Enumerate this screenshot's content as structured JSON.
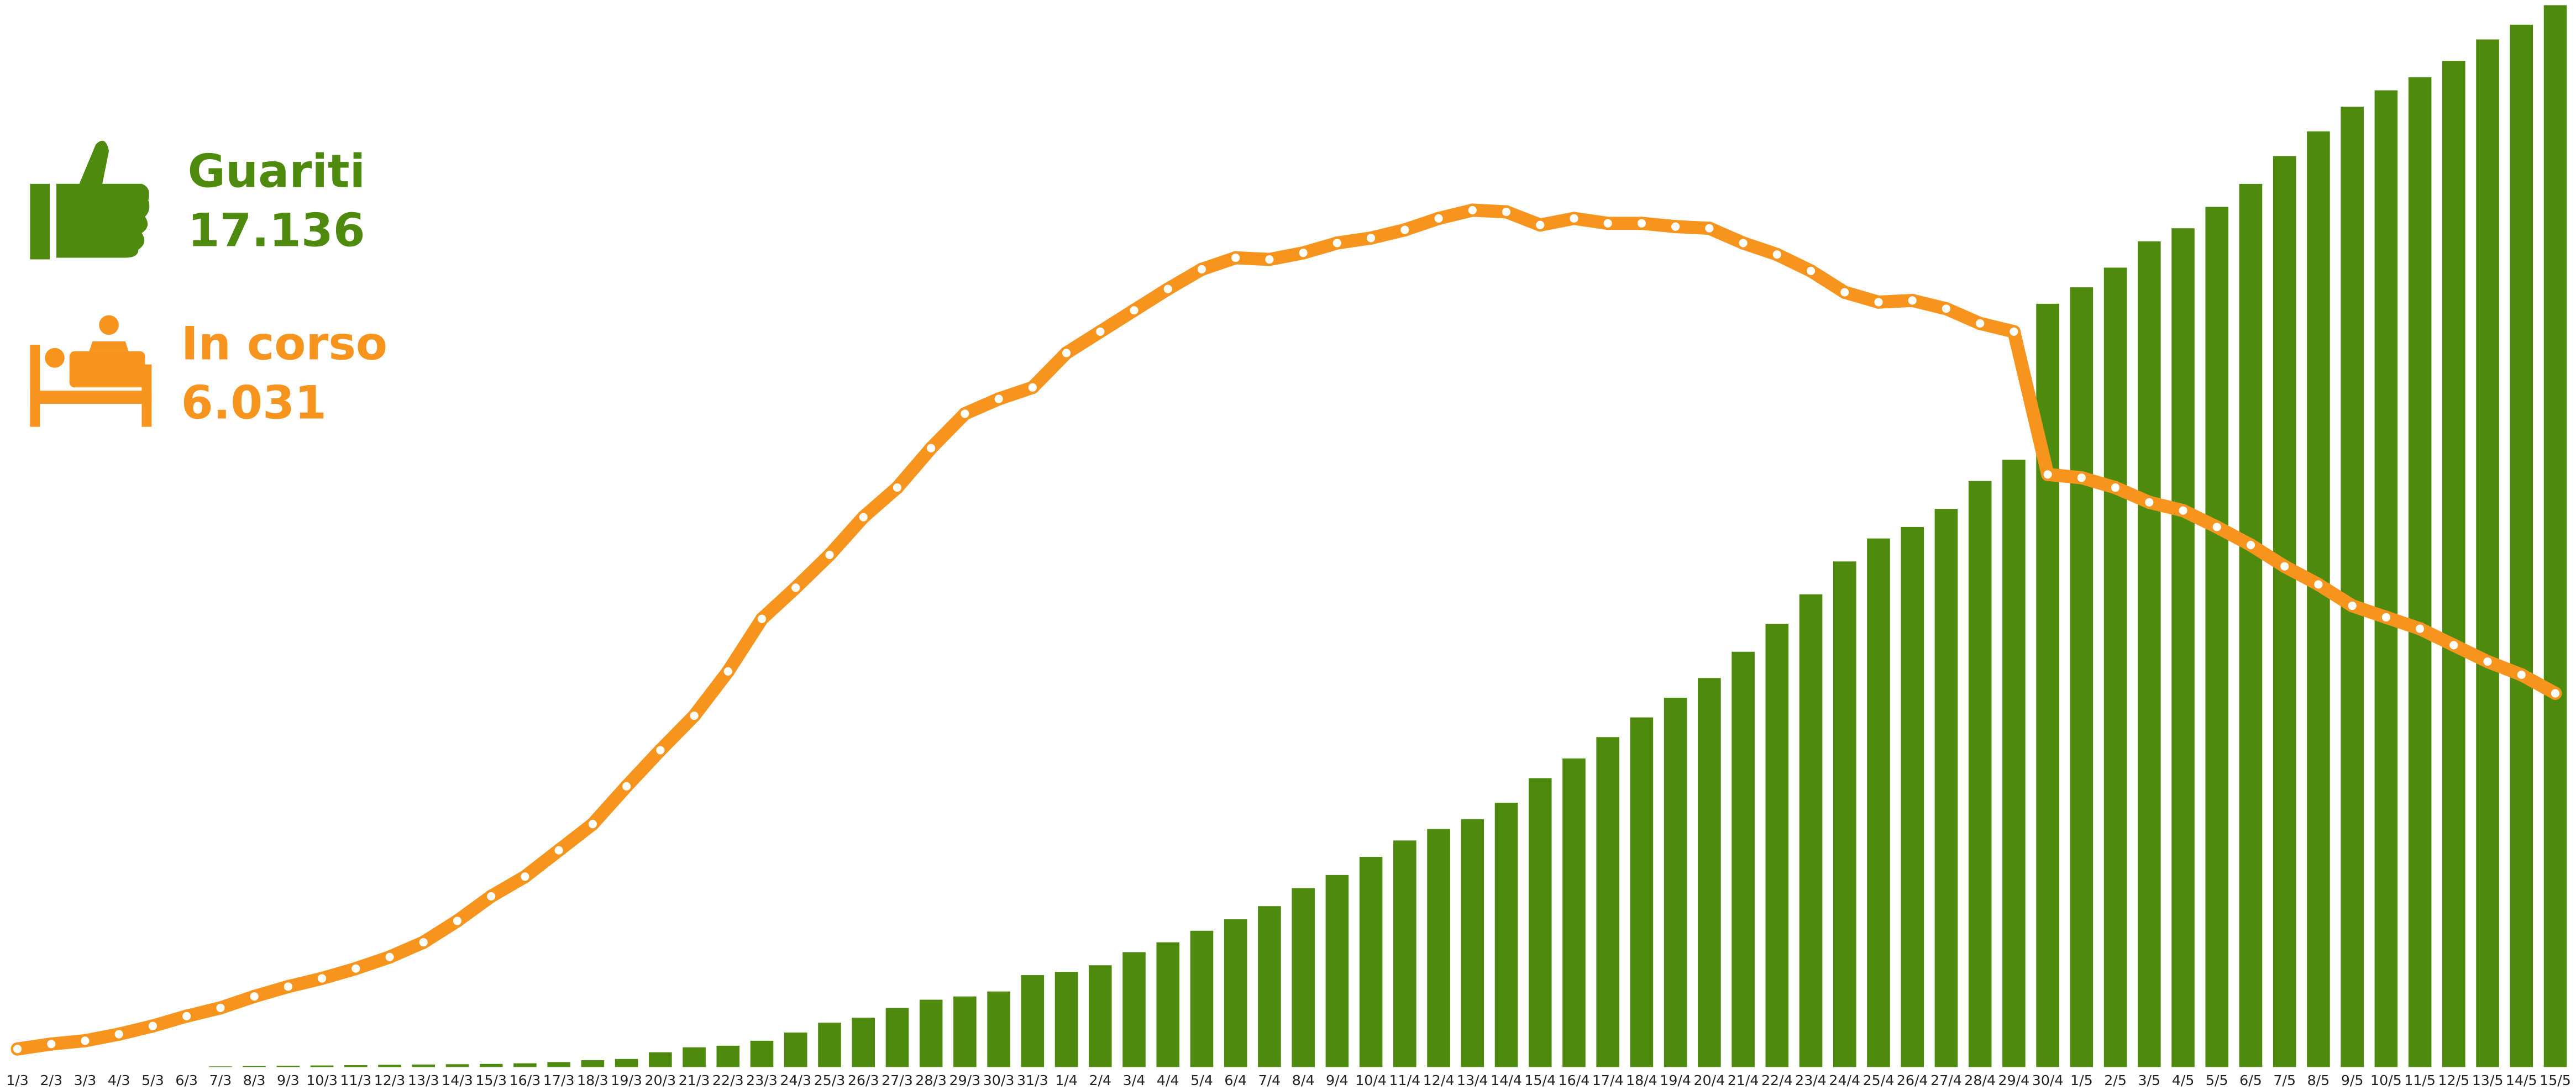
{
  "chart_data": {
    "type": "bar-line",
    "categories": [
      "1/3",
      "2/3",
      "3/3",
      "4/3",
      "5/3",
      "6/3",
      "7/3",
      "8/3",
      "9/3",
      "10/3",
      "11/3",
      "12/3",
      "13/3",
      "14/3",
      "15/3",
      "16/3",
      "17/3",
      "18/3",
      "19/3",
      "20/3",
      "21/3",
      "22/3",
      "23/3",
      "24/3",
      "25/3",
      "26/3",
      "27/3",
      "28/3",
      "29/3",
      "30/3",
      "31/3",
      "1/4",
      "2/4",
      "3/4",
      "4/4",
      "5/4",
      "6/4",
      "7/4",
      "8/4",
      "9/4",
      "10/4",
      "11/4",
      "12/4",
      "13/4",
      "14/4",
      "15/4",
      "16/4",
      "17/4",
      "18/4",
      "19/4",
      "20/4",
      "21/4",
      "22/4",
      "23/4",
      "24/4",
      "25/4",
      "26/4",
      "27/4",
      "28/4",
      "29/4",
      "30/4",
      "1/5",
      "2/5",
      "3/5",
      "4/5",
      "5/5",
      "6/5",
      "7/5",
      "8/5",
      "9/5",
      "10/5",
      "11/5",
      "12/5",
      "13/5",
      "14/5",
      "15/5"
    ],
    "series": [
      {
        "name": "Guariti",
        "legend_value": "17.136",
        "kind": "bar",
        "color": "#4e8a0e",
        "values": [
          0,
          0,
          0,
          0,
          0,
          0,
          10,
          15,
          20,
          25,
          30,
          35,
          40,
          45,
          50,
          60,
          80,
          110,
          130,
          238,
          318,
          344,
          424,
          556,
          715,
          795,
          954,
          1086,
          1139,
          1219,
          1483,
          1536,
          1642,
          1854,
          2013,
          2199,
          2384,
          2596,
          2887,
          3099,
          3391,
          3656,
          3841,
          4000,
          4265,
          4662,
          4980,
          5324,
          5642,
          5960,
          6278,
          6702,
          7152,
          7629,
          8159,
          8530,
          8715,
          9007,
          9457,
          9801,
          12318,
          12583,
          12901,
          13325,
          13536,
          13881,
          14252,
          14702,
          15100,
          15497,
          15762,
          15974,
          16238,
          16583,
          16821,
          17136
        ]
      },
      {
        "name": "In corso",
        "legend_value": "6.031",
        "kind": "line",
        "color": "#f7941d",
        "values": [
          291,
          371,
          424,
          530,
          662,
          821,
          954,
          1139,
          1298,
          1430,
          1589,
          1775,
          2013,
          2358,
          2755,
          3073,
          3497,
          3921,
          4530,
          5113,
          5669,
          6384,
          7232,
          7735,
          8265,
          8874,
          9351,
          9987,
          10543,
          10782,
          10967,
          11523,
          11868,
          12212,
          12556,
          12874,
          13060,
          13033,
          13139,
          13298,
          13378,
          13510,
          13695,
          13828,
          13801,
          13589,
          13695,
          13616,
          13616,
          13563,
          13536,
          13298,
          13113,
          12848,
          12503,
          12344,
          12371,
          12238,
          12000,
          11868,
          9563,
          9510,
          9351,
          9113,
          8980,
          8715,
          8424,
          8080,
          7788,
          7444,
          7258,
          7073,
          6808,
          6543,
          6331,
          6031
        ]
      }
    ],
    "ylim": [
      0,
      17220
    ]
  }
}
